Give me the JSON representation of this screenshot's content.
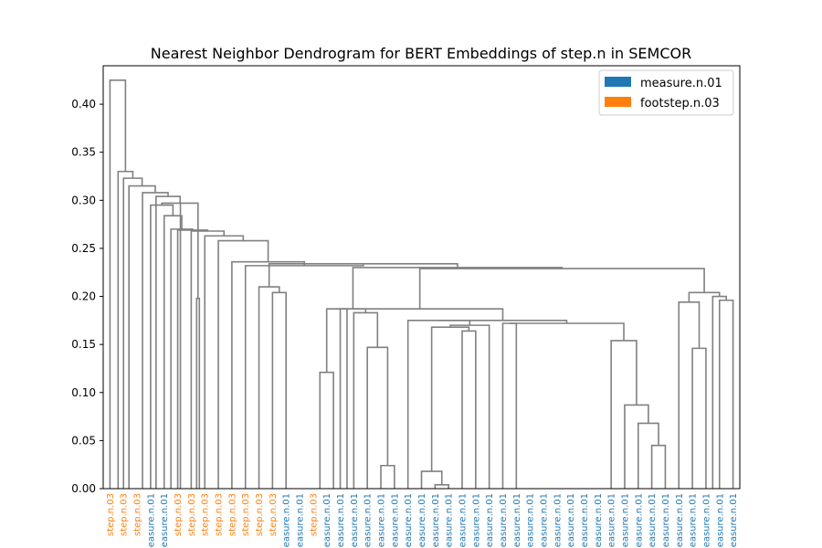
{
  "chart_data": {
    "type": "dendrogram",
    "title": "Nearest Neighbor Dendrogram for BERT Embeddings of step.n in SEMCOR",
    "ylim": [
      0,
      0.44
    ],
    "yticks": [
      0.0,
      0.05,
      0.1,
      0.15,
      0.2,
      0.25,
      0.3,
      0.35,
      0.4
    ],
    "ytick_labels": [
      "0.00",
      "0.05",
      "0.10",
      "0.15",
      "0.20",
      "0.25",
      "0.30",
      "0.35",
      "0.40"
    ],
    "legend_position": "upper right",
    "link_color": "#808080",
    "legend": [
      {
        "label": "measure.n.01",
        "color": "#1f77b4"
      },
      {
        "label": "footstep.n.03",
        "color": "#ff7f0e"
      }
    ],
    "leaves": [
      {
        "label": "step.n.03",
        "class": "footstep.n.03"
      },
      {
        "label": "step.n.03",
        "class": "footstep.n.03"
      },
      {
        "label": "step.n.03",
        "class": "footstep.n.03"
      },
      {
        "label": "measure.n.01",
        "class": "measure.n.01"
      },
      {
        "label": "measure.n.01",
        "class": "measure.n.01"
      },
      {
        "label": "step.n.03",
        "class": "footstep.n.03"
      },
      {
        "label": "step.n.03",
        "class": "footstep.n.03"
      },
      {
        "label": "step.n.03",
        "class": "footstep.n.03"
      },
      {
        "label": "step.n.03",
        "class": "footstep.n.03"
      },
      {
        "label": "step.n.03",
        "class": "footstep.n.03"
      },
      {
        "label": "step.n.03",
        "class": "footstep.n.03"
      },
      {
        "label": "step.n.03",
        "class": "footstep.n.03"
      },
      {
        "label": "step.n.03",
        "class": "footstep.n.03"
      },
      {
        "label": "measure.n.01",
        "class": "measure.n.01"
      },
      {
        "label": "measure.n.01",
        "class": "measure.n.01"
      },
      {
        "label": "step.n.03",
        "class": "footstep.n.03"
      },
      {
        "label": "measure.n.01",
        "class": "measure.n.01"
      },
      {
        "label": "measure.n.01",
        "class": "measure.n.01"
      },
      {
        "label": "measure.n.01",
        "class": "measure.n.01"
      },
      {
        "label": "measure.n.01",
        "class": "measure.n.01"
      },
      {
        "label": "measure.n.01",
        "class": "measure.n.01"
      },
      {
        "label": "measure.n.01",
        "class": "measure.n.01"
      },
      {
        "label": "measure.n.01",
        "class": "measure.n.01"
      },
      {
        "label": "measure.n.01",
        "class": "measure.n.01"
      },
      {
        "label": "measure.n.01",
        "class": "measure.n.01"
      },
      {
        "label": "measure.n.01",
        "class": "measure.n.01"
      },
      {
        "label": "measure.n.01",
        "class": "measure.n.01"
      },
      {
        "label": "measure.n.01",
        "class": "measure.n.01"
      },
      {
        "label": "measure.n.01",
        "class": "measure.n.01"
      },
      {
        "label": "measure.n.01",
        "class": "measure.n.01"
      },
      {
        "label": "measure.n.01",
        "class": "measure.n.01"
      },
      {
        "label": "measure.n.01",
        "class": "measure.n.01"
      },
      {
        "label": "measure.n.01",
        "class": "measure.n.01"
      },
      {
        "label": "measure.n.01",
        "class": "measure.n.01"
      },
      {
        "label": "measure.n.01",
        "class": "measure.n.01"
      },
      {
        "label": "measure.n.01",
        "class": "measure.n.01"
      },
      {
        "label": "measure.n.01",
        "class": "measure.n.01"
      },
      {
        "label": "measure.n.01",
        "class": "measure.n.01"
      },
      {
        "label": "measure.n.01",
        "class": "measure.n.01"
      },
      {
        "label": "measure.n.01",
        "class": "measure.n.01"
      },
      {
        "label": "measure.n.01",
        "class": "measure.n.01"
      },
      {
        "label": "measure.n.01",
        "class": "measure.n.01"
      },
      {
        "label": "measure.n.01",
        "class": "measure.n.01"
      },
      {
        "label": "measure.n.01",
        "class": "measure.n.01"
      },
      {
        "label": "measure.n.01",
        "class": "measure.n.01"
      },
      {
        "label": "measure.n.01",
        "class": "measure.n.01"
      },
      {
        "label": "measure.n.01",
        "class": "measure.n.01"
      }
    ],
    "merges": [
      {
        "id": "m1",
        "left": 24,
        "right": 25,
        "height": 0.004
      },
      {
        "id": "m2",
        "left": 23,
        "right": "m1",
        "height": 0.018
      },
      {
        "id": "m3",
        "left": 20,
        "right": 21,
        "height": 0.024
      },
      {
        "id": "m4",
        "left": 40,
        "right": 41,
        "height": 0.045
      },
      {
        "id": "m5",
        "left": 39,
        "right": "m4",
        "height": 0.068
      },
      {
        "id": "m6",
        "left": 38,
        "right": "m5",
        "height": 0.087
      },
      {
        "id": "m7",
        "left": 18,
        "right": 19,
        "height": 0.121
      },
      {
        "id": "m8",
        "left": 43,
        "right": 44,
        "height": 0.146
      },
      {
        "id": "m9",
        "left": 19.5,
        "right": "m3",
        "height": 0.147,
        "_note": "unused"
      },
      {
        "id": "m10",
        "left": 37,
        "right": "m6",
        "height": 0.154
      },
      {
        "id": "m11",
        "left": 26,
        "right": 27,
        "height": 0.164
      },
      {
        "id": "m12",
        "left": "m2",
        "right": "m11",
        "height": 0.168
      }
    ]
  }
}
